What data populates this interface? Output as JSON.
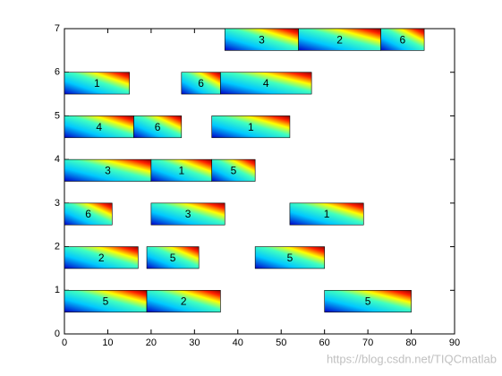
{
  "chart_data": {
    "type": "gantt",
    "xlim": [
      0,
      90
    ],
    "ylim": [
      0,
      7
    ],
    "xticks": [
      0,
      10,
      20,
      30,
      40,
      50,
      60,
      70,
      80,
      90
    ],
    "yticks": [
      0,
      1,
      2,
      3,
      4,
      5,
      6,
      7
    ],
    "tasks": [
      {
        "row": 1,
        "start": 0,
        "end": 19,
        "label": "5"
      },
      {
        "row": 1,
        "start": 19,
        "end": 36,
        "label": "2"
      },
      {
        "row": 1,
        "start": 60,
        "end": 80,
        "label": "5"
      },
      {
        "row": 2,
        "start": 0,
        "end": 17,
        "label": "2"
      },
      {
        "row": 2,
        "start": 19,
        "end": 31,
        "label": "5"
      },
      {
        "row": 2,
        "start": 44,
        "end": 60,
        "label": "5"
      },
      {
        "row": 3,
        "start": 0,
        "end": 11,
        "label": "6"
      },
      {
        "row": 3,
        "start": 20,
        "end": 37,
        "label": "3"
      },
      {
        "row": 3,
        "start": 52,
        "end": 69,
        "label": "1"
      },
      {
        "row": 4,
        "start": 0,
        "end": 20,
        "label": "3"
      },
      {
        "row": 4,
        "start": 20,
        "end": 34,
        "label": "1"
      },
      {
        "row": 4,
        "start": 34,
        "end": 44,
        "label": "5"
      },
      {
        "row": 5,
        "start": 0,
        "end": 16,
        "label": "4"
      },
      {
        "row": 5,
        "start": 16,
        "end": 27,
        "label": "6"
      },
      {
        "row": 5,
        "start": 34,
        "end": 52,
        "label": "1"
      },
      {
        "row": 6,
        "start": 0,
        "end": 15,
        "label": "1"
      },
      {
        "row": 6,
        "start": 27,
        "end": 36,
        "label": "6"
      },
      {
        "row": 6,
        "start": 36,
        "end": 57,
        "label": "4"
      },
      {
        "row": 7,
        "start": 37,
        "end": 54,
        "label": "3"
      },
      {
        "row": 7,
        "start": 54,
        "end": 73,
        "label": "2"
      },
      {
        "row": 7,
        "start": 73,
        "end": 83,
        "label": "6"
      }
    ],
    "watermark": "https://blog.csdn.net/TIQCmatlab"
  }
}
